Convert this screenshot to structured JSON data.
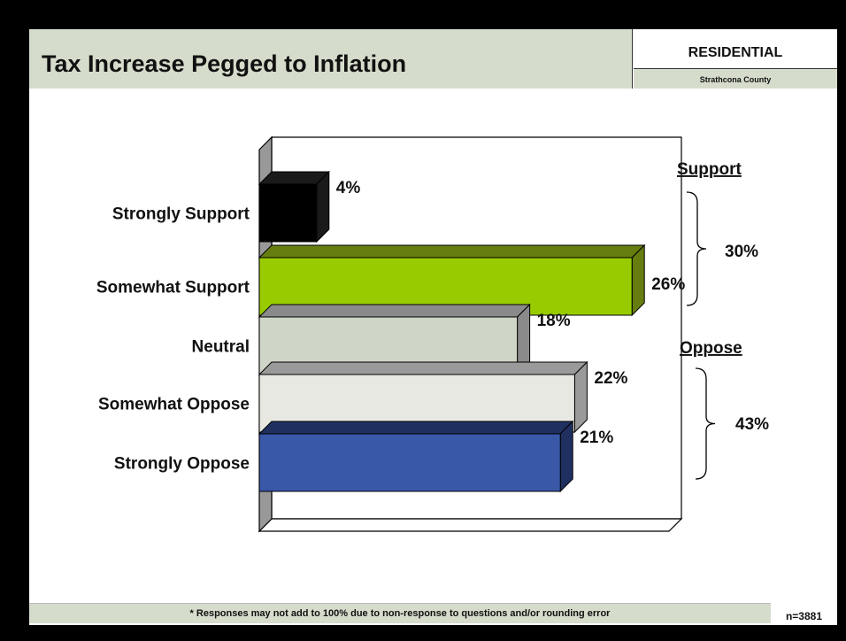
{
  "header": {
    "title": "Tax Increase Pegged to Inflation",
    "segment": "RESIDENTIAL",
    "location": "Strathcona County"
  },
  "chart_data": {
    "type": "bar",
    "orientation": "horizontal",
    "title": "",
    "xlabel": "",
    "ylabel": "",
    "categories": [
      "Strongly Support",
      "Somewhat Support",
      "Neutral",
      "Somewhat Oppose",
      "Strongly Oppose"
    ],
    "values": [
      4,
      26,
      18,
      22,
      21
    ],
    "value_labels": [
      "4%",
      "26%",
      "18%",
      "22%",
      "21%"
    ],
    "unit": "%",
    "colors": [
      "#000000",
      "#99cc00",
      "#cfd6c7",
      "#e7e8e1",
      "#3958a8"
    ],
    "side_colors": [
      "#1a1a1a",
      "#667d10",
      "#8a8a8a",
      "#9a9a9a",
      "#1f3060"
    ],
    "groups": [
      {
        "label": "Support",
        "total_label": "30%",
        "categories": [
          "Strongly Support",
          "Somewhat Support"
        ]
      },
      {
        "label": "Oppose",
        "total_label": "43%",
        "categories": [
          "Somewhat Oppose",
          "Strongly Oppose"
        ]
      }
    ],
    "grid": false
  },
  "footer": {
    "note": "* Responses may not add to 100% due to non-response to questions and/or rounding error",
    "sample": "n=3881"
  }
}
